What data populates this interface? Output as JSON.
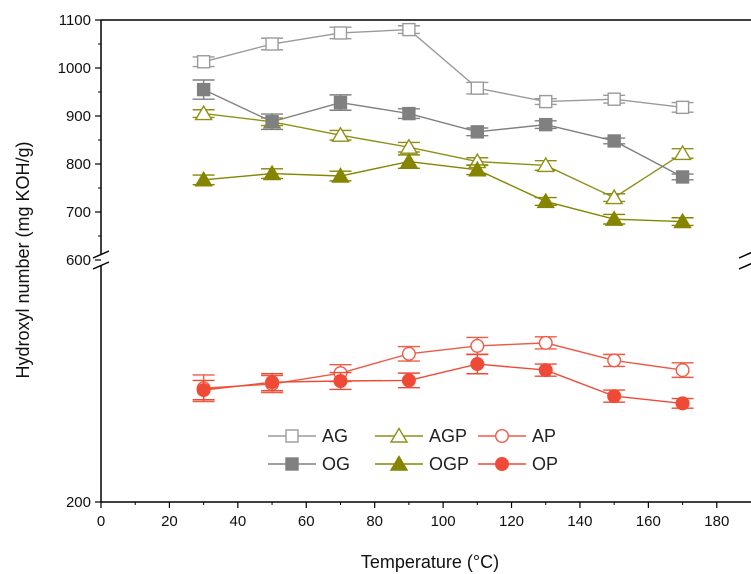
{
  "chart_data": {
    "type": "line",
    "xlabel": "Temperature (°C)",
    "ylabel": "Hydroxyl number (mg KOH/g)",
    "xlim": [
      0,
      190
    ],
    "x_ticks": [
      0,
      20,
      40,
      60,
      80,
      100,
      120,
      140,
      160,
      180
    ],
    "y_ticks_upper": [
      600,
      700,
      800,
      900,
      1000,
      1100
    ],
    "y_ticks_lower": [
      200
    ],
    "y_axis_break": true,
    "ylim_upper": [
      600,
      1100
    ],
    "ylim_lower": [
      200,
      600
    ],
    "x": [
      30,
      50,
      70,
      90,
      110,
      130,
      150,
      170
    ],
    "series": [
      {
        "name": "AG",
        "color": "#9a9a9a",
        "marker": "square-open",
        "values": [
          1013,
          1050,
          1073,
          1080,
          958,
          930,
          935,
          918
        ],
        "errors": [
          10,
          12,
          12,
          8,
          12,
          6,
          8,
          10
        ]
      },
      {
        "name": "AGP",
        "color": "#8f8f18",
        "marker": "triangle-open",
        "values": [
          905,
          888,
          860,
          835,
          805,
          797,
          730,
          822
        ],
        "errors": [
          8,
          8,
          10,
          10,
          8,
          10,
          8,
          10
        ]
      },
      {
        "name": "AP",
        "color": "#ef5a45",
        "marker": "circle-open",
        "values": [
          388,
          395,
          413,
          445,
          458,
          463,
          434,
          418
        ],
        "errors": [
          22,
          14,
          14,
          12,
          14,
          10,
          10,
          12
        ]
      },
      {
        "name": "OG",
        "color": "#808080",
        "marker": "square-filled",
        "values": [
          955,
          888,
          928,
          905,
          867,
          882,
          848,
          773
        ],
        "errors": [
          20,
          16,
          16,
          10,
          8,
          8,
          6,
          6
        ]
      },
      {
        "name": "OGP",
        "color": "#858500",
        "marker": "triangle-filled",
        "values": [
          767,
          780,
          775,
          805,
          788,
          722,
          685,
          680
        ],
        "errors": [
          10,
          10,
          10,
          14,
          10,
          8,
          10,
          8
        ]
      },
      {
        "name": "OP",
        "color": "#ee4a35",
        "marker": "circle-filled",
        "values": [
          385,
          398,
          400,
          401,
          428,
          418,
          375,
          363
        ],
        "errors": [
          16,
          14,
          14,
          12,
          16,
          10,
          10,
          8
        ]
      }
    ]
  }
}
